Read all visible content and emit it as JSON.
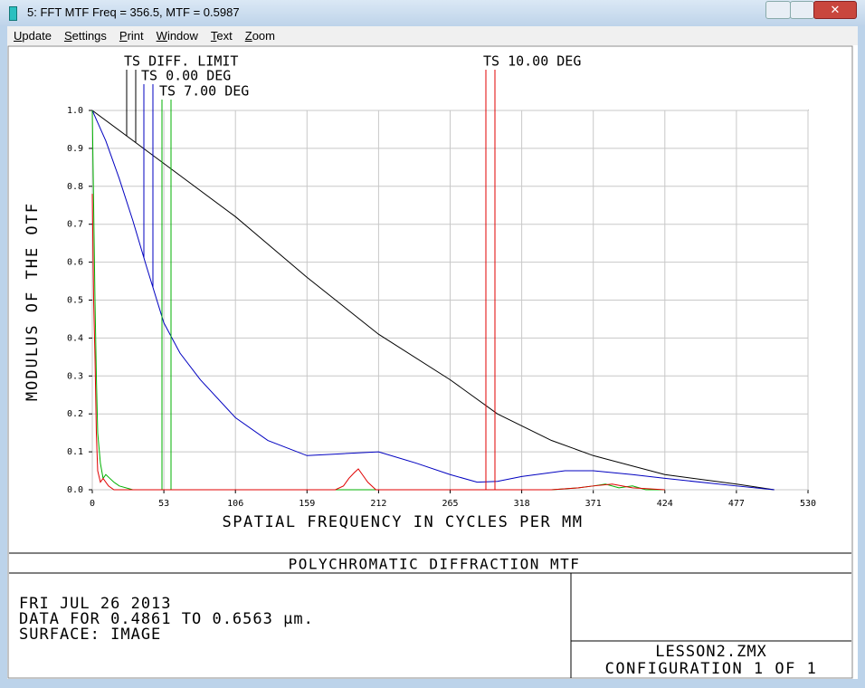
{
  "window": {
    "title": "5: FFT MTF Freq = 356.5, MTF = 0.5987"
  },
  "menu": [
    "Update",
    "Settings",
    "Print",
    "Window",
    "Text",
    "Zoom"
  ],
  "chart_data": {
    "type": "line",
    "xlabel": "SPATIAL FREQUENCY IN CYCLES PER MM",
    "ylabel": "MODULUS OF THE OTF",
    "xlim": [
      0,
      530
    ],
    "ylim": [
      0,
      1
    ],
    "xticks": [
      0,
      53,
      106,
      159,
      212,
      265,
      318,
      371,
      424,
      477,
      530
    ],
    "yticks": [
      {
        "value": 0,
        "label": "0.0"
      },
      {
        "value": 0.1,
        "label": "0.1"
      },
      {
        "value": 0.2,
        "label": "0.2"
      },
      {
        "value": 0.3,
        "label": "0.3"
      },
      {
        "value": 0.4,
        "label": "0.4"
      },
      {
        "value": 0.5,
        "label": "0.5"
      },
      {
        "value": 0.6,
        "label": "0.6"
      },
      {
        "value": 0.7,
        "label": "0.7"
      },
      {
        "value": 0.8,
        "label": "0.8"
      },
      {
        "value": 0.9,
        "label": "0.9"
      },
      {
        "value": 1,
        "label": "1.0"
      }
    ],
    "grid": true,
    "series": [
      {
        "name": "TS DIFF. LIMIT",
        "color": "#000000",
        "x": [
          0,
          53,
          106,
          159,
          212,
          265,
          300,
          340,
          371,
          424,
          477,
          505
        ],
        "values": [
          1,
          0.86,
          0.72,
          0.56,
          0.41,
          0.29,
          0.2,
          0.13,
          0.09,
          0.04,
          0.015,
          0
        ]
      },
      {
        "name": "TS 0.00 DEG",
        "color": "#0000c0",
        "x": [
          0,
          10,
          20,
          30,
          40,
          53,
          65,
          80,
          106,
          130,
          159,
          185,
          212,
          240,
          265,
          285,
          300,
          318,
          350,
          371,
          400,
          424,
          477,
          505
        ],
        "values": [
          1,
          0.92,
          0.82,
          0.71,
          0.59,
          0.44,
          0.36,
          0.29,
          0.19,
          0.13,
          0.09,
          0.095,
          0.1,
          0.07,
          0.04,
          0.02,
          0.022,
          0.035,
          0.05,
          0.05,
          0.04,
          0.03,
          0.01,
          0
        ]
      },
      {
        "name": "TS 7.00 DEG",
        "color": "#00b000",
        "x": [
          0,
          1,
          2,
          3,
          4,
          6,
          8,
          10,
          13,
          16,
          20,
          30,
          53,
          340,
          360,
          371,
          380,
          390,
          400,
          410,
          424
        ],
        "values": [
          1,
          0.75,
          0.5,
          0.3,
          0.15,
          0.07,
          0.03,
          0.04,
          0.03,
          0.02,
          0.01,
          0,
          0,
          0,
          0.005,
          0.01,
          0.015,
          0.005,
          0.01,
          0,
          0
        ]
      },
      {
        "name": "TS 10.00 DEG",
        "color": "#e00000",
        "x": [
          0,
          1,
          2,
          3,
          4,
          6,
          8,
          12,
          16,
          30,
          180,
          186,
          190,
          194,
          197,
          200,
          204,
          210,
          340,
          360,
          371,
          385,
          400,
          424
        ],
        "values": [
          0.78,
          0.5,
          0.35,
          0.15,
          0.05,
          0.02,
          0.03,
          0.01,
          0,
          0,
          0,
          0.01,
          0.03,
          0.045,
          0.055,
          0.04,
          0.02,
          0,
          0,
          0.005,
          0.01,
          0.015,
          0.005,
          0
        ]
      }
    ]
  },
  "footer": {
    "title": "POLYCHROMATIC DIFFRACTION MTF",
    "left": [
      "FRI JUL 26 2013",
      "DATA FOR 0.4861 TO 0.6563 µm.",
      "SURFACE: IMAGE"
    ],
    "right": [
      "LESSON2.ZMX",
      "CONFIGURATION 1 OF 1"
    ]
  }
}
